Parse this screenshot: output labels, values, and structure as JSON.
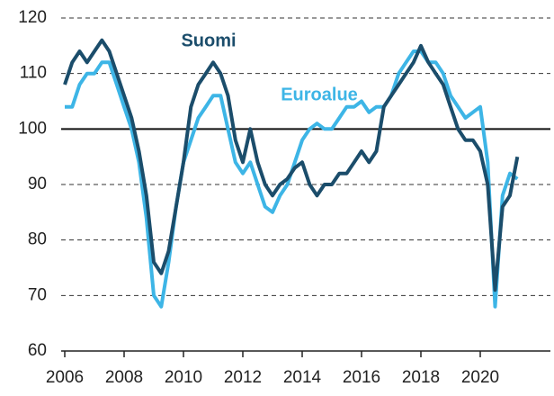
{
  "chart_data": {
    "type": "line",
    "x": [
      2006,
      2006.25,
      2006.5,
      2006.75,
      2007,
      2007.25,
      2007.5,
      2007.75,
      2008,
      2008.25,
      2008.5,
      2008.75,
      2009,
      2009.25,
      2009.5,
      2009.75,
      2010,
      2010.25,
      2010.5,
      2010.75,
      2011,
      2011.25,
      2011.5,
      2011.75,
      2012,
      2012.25,
      2012.5,
      2012.75,
      2013,
      2013.25,
      2013.5,
      2013.75,
      2014,
      2014.25,
      2014.5,
      2014.75,
      2015,
      2015.25,
      2015.5,
      2015.75,
      2016,
      2016.25,
      2016.5,
      2016.75,
      2017,
      2017.25,
      2017.5,
      2017.75,
      2018,
      2018.25,
      2018.5,
      2018.75,
      2019,
      2019.25,
      2019.5,
      2019.75,
      2020,
      2020.25,
      2020.5,
      2020.75,
      2021,
      2021.25
    ],
    "series": [
      {
        "name": "Suomi",
        "color": "#1b4d6b",
        "values": [
          108,
          112,
          114,
          112,
          114,
          116,
          114,
          110,
          106,
          102,
          96,
          88,
          76,
          74,
          78,
          86,
          94,
          104,
          108,
          110,
          112,
          110,
          106,
          98,
          94,
          100,
          94,
          90,
          88,
          90,
          91,
          93,
          94,
          90,
          88,
          90,
          90,
          92,
          92,
          94,
          96,
          94,
          96,
          104,
          106,
          108,
          110,
          112,
          115,
          112,
          110,
          108,
          104,
          100,
          98,
          98,
          96,
          90,
          71,
          86,
          88,
          95
        ]
      },
      {
        "name": "Euroalue",
        "color": "#3db5e6",
        "values": [
          104,
          104,
          108,
          110,
          110,
          112,
          112,
          108,
          104,
          100,
          94,
          84,
          70,
          68,
          76,
          86,
          94,
          98,
          102,
          104,
          106,
          106,
          100,
          94,
          92,
          94,
          90,
          86,
          85,
          88,
          90,
          94,
          98,
          100,
          101,
          100,
          100,
          102,
          104,
          104,
          105,
          103,
          104,
          104,
          106,
          110,
          112,
          114,
          114,
          112,
          112,
          110,
          106,
          104,
          102,
          103,
          104,
          94,
          68,
          88,
          92,
          91
        ]
      }
    ],
    "xlim": [
      2006,
      2022
    ],
    "xticks": [
      2006,
      2008,
      2010,
      2012,
      2014,
      2016,
      2018,
      2020
    ],
    "ylim": [
      60,
      120
    ],
    "yticks": [
      60,
      70,
      80,
      90,
      100,
      110,
      120
    ],
    "grid": true,
    "reference_line": 100
  }
}
